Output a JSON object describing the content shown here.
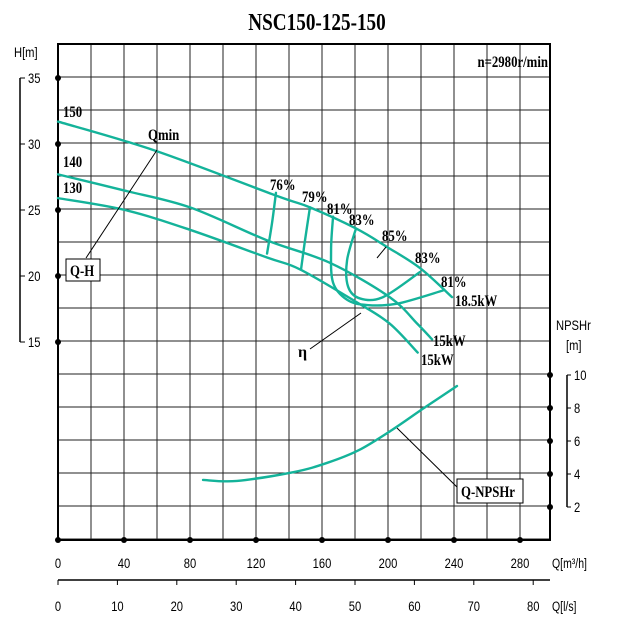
{
  "chart_data": {
    "type": "line",
    "title": "NSC150-125-150",
    "speed_label": "n=2980r/min",
    "grid": true,
    "x_axis": {
      "label": "Q[m³/h]",
      "range": [
        0,
        298
      ],
      "ticks": [
        0,
        40,
        80,
        120,
        160,
        200,
        240,
        280
      ]
    },
    "x2_axis": {
      "label": "Q[l/s]",
      "ticks": [
        0,
        10,
        20,
        30,
        40,
        50,
        60,
        70,
        80
      ]
    },
    "y_axis": {
      "label": "H[m]",
      "range": [
        0,
        37.5
      ],
      "ticks": [
        15,
        20,
        25,
        30,
        35
      ]
    },
    "y2_axis": {
      "label_line1": "NPSHr",
      "label_line2": "[m]",
      "range": [
        0,
        10
      ],
      "ticks": [
        2,
        4,
        6,
        8,
        10
      ]
    },
    "head_curves": [
      {
        "name": "150",
        "power": "18.5kW",
        "points": [
          [
            0,
            31.7
          ],
          [
            58.8,
            29.5
          ],
          [
            132,
            26.1
          ],
          [
            152.7,
            25.2
          ],
          [
            180.6,
            23.6
          ],
          [
            199.4,
            22.2
          ],
          [
            219.4,
            20.6
          ],
          [
            238.8,
            18.4
          ]
        ]
      },
      {
        "name": "140",
        "power": "15kW",
        "points": [
          [
            0,
            27.7
          ],
          [
            39.4,
            26.5
          ],
          [
            80,
            25.2
          ],
          [
            126.7,
            22.7
          ],
          [
            164.8,
            21.0
          ],
          [
            201,
            18.4
          ],
          [
            217.6,
            16.4
          ],
          [
            226.7,
            15.2
          ]
        ]
      },
      {
        "name": "130",
        "power": "15kW",
        "points": [
          [
            0,
            25.9
          ],
          [
            40.6,
            25.0
          ],
          [
            80,
            23.5
          ],
          [
            126.7,
            21.4
          ],
          [
            146.7,
            20.5
          ],
          [
            181.2,
            18.0
          ],
          [
            201,
            16.4
          ],
          [
            218,
            14.2
          ]
        ]
      }
    ],
    "efficiency_contours": [
      {
        "label": "76%",
        "points": [
          [
            132.1,
            26.3
          ],
          [
            129.7,
            24.0
          ],
          [
            126.7,
            21.7
          ]
        ]
      },
      {
        "label": "79%",
        "points": [
          [
            152.7,
            25.2
          ],
          [
            149.7,
            22.7
          ],
          [
            147.3,
            20.5
          ]
        ]
      },
      {
        "label": "81%",
        "points": [
          [
            166.7,
            24.5
          ],
          [
            165.5,
            22.0
          ],
          [
            166.7,
            19.5
          ],
          [
            175.2,
            18.2
          ],
          [
            187.3,
            17.8
          ],
          [
            205.5,
            17.9
          ],
          [
            233.3,
            18.9
          ]
        ]
      },
      {
        "label": "83%",
        "points": [
          [
            180.6,
            23.6
          ],
          [
            175.2,
            21.2
          ],
          [
            175.8,
            19.2
          ],
          [
            183.0,
            18.3
          ],
          [
            197.0,
            18.4
          ],
          [
            219.4,
            20.3
          ]
        ]
      }
    ],
    "best_efficiency_label": "85%",
    "npsh_curve": {
      "name": "Q-NPSHr",
      "points": [
        [
          87.9,
          3.64
        ],
        [
          108.5,
          3.58
        ],
        [
          143,
          4.12
        ],
        [
          163,
          4.67
        ],
        [
          182.4,
          5.45
        ],
        [
          202.4,
          6.67
        ],
        [
          221.8,
          8.0
        ],
        [
          241.8,
          9.33
        ]
      ]
    },
    "annotations": {
      "qmin": "Qmin",
      "qh": "Q-H",
      "eta": "η"
    },
    "colors": {
      "curves": "#14b39a",
      "grid": "#222222"
    }
  }
}
